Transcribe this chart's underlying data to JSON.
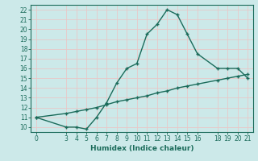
{
  "xlabel": "Humidex (Indice chaleur)",
  "ylabel": "",
  "bg_color": "#cce9e9",
  "grid_color": "#e8c8c8",
  "line_color": "#1a6b5a",
  "xlim": [
    -0.5,
    21.5
  ],
  "ylim": [
    9.5,
    22.5
  ],
  "xticks": [
    0,
    3,
    4,
    5,
    6,
    7,
    8,
    9,
    10,
    11,
    12,
    13,
    14,
    15,
    16,
    18,
    19,
    20,
    21
  ],
  "yticks": [
    10,
    11,
    12,
    13,
    14,
    15,
    16,
    17,
    18,
    19,
    20,
    21,
    22
  ],
  "curve1_x": [
    0,
    3,
    4,
    5,
    6,
    7,
    8,
    9,
    10,
    11,
    12,
    13,
    14,
    15,
    16,
    18,
    19,
    20,
    21
  ],
  "curve1_y": [
    11,
    10,
    10,
    9.8,
    11,
    12.5,
    14.5,
    16,
    16.5,
    19.5,
    20.5,
    22,
    21.5,
    19.5,
    17.5,
    16,
    16,
    16,
    15
  ],
  "curve2_x": [
    0,
    3,
    4,
    5,
    6,
    7,
    8,
    9,
    10,
    11,
    12,
    13,
    14,
    15,
    16,
    18,
    19,
    20,
    21
  ],
  "curve2_y": [
    11,
    11.4,
    11.6,
    11.8,
    12.0,
    12.3,
    12.6,
    12.8,
    13.0,
    13.2,
    13.5,
    13.7,
    14.0,
    14.2,
    14.4,
    14.8,
    15.0,
    15.2,
    15.4
  ],
  "marker_size": 3.5,
  "line_width": 1.0,
  "tick_fontsize": 5.5,
  "xlabel_fontsize": 6.5
}
